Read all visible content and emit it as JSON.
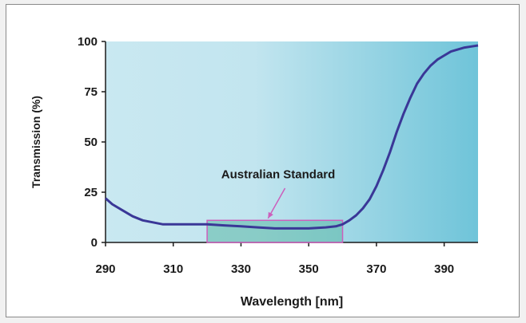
{
  "chart_data": {
    "type": "line",
    "xlabel": "Wavelength [nm]",
    "ylabel": "Transmission (%)",
    "xlim": [
      290,
      400
    ],
    "ylim": [
      0,
      100
    ],
    "x_ticks": [
      290,
      310,
      330,
      350,
      370,
      390
    ],
    "y_ticks": [
      0,
      25,
      50,
      75,
      100
    ],
    "grid": false,
    "series": [
      {
        "x": [
          290,
          292,
          295,
          298,
          301,
          304,
          307,
          310,
          315,
          320,
          325,
          330,
          335,
          340,
          345,
          350,
          355,
          358,
          360,
          362,
          364,
          366,
          368,
          370,
          372,
          374,
          376,
          378,
          380,
          382,
          384,
          386,
          388,
          390,
          392,
          394,
          396,
          398,
          400
        ],
        "y": [
          22,
          19,
          16,
          13,
          11,
          10,
          9,
          9,
          9,
          9,
          8.5,
          8,
          7.5,
          7,
          7,
          7,
          7.5,
          8,
          9,
          11,
          13.5,
          17,
          21.5,
          28,
          36,
          45,
          55,
          64,
          72,
          79,
          84,
          88,
          91,
          93,
          95,
          96,
          97,
          97.5,
          98
        ]
      }
    ],
    "annotation": {
      "text": "Australian Standard",
      "x_range": [
        320,
        360
      ],
      "y_range": [
        0,
        11
      ]
    }
  },
  "colors": {
    "line": "#3a3797",
    "annotation_box": "#cc5fbc",
    "annotation_fill": "#5bb8a6",
    "gradient_start": "#c9e8f1",
    "gradient_end": "#6fc4d9"
  }
}
